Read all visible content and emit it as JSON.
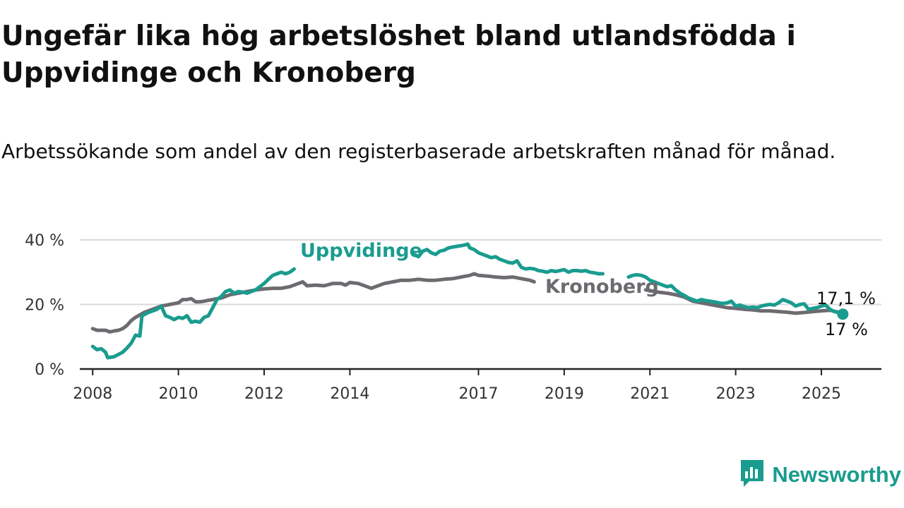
{
  "title": "Ungefär lika hög arbetslöshet bland utlandsfödda i Uppvidinge och Kronoberg",
  "subtitle": "Arbetssökande som andel av den registerbaserade arbetskraften månad för månad.",
  "brand": {
    "name": "Newsworthy",
    "icon": "bar-chart-badge-icon"
  },
  "colors": {
    "uppvidinge": "#1a9c8f",
    "kronoberg": "#6d6b70",
    "grid": "#d9d9d9",
    "axis": "#222222"
  },
  "chart_data": {
    "type": "line",
    "title": "Ungefär lika hög arbetslöshet bland utlandsfödda i Uppvidinge och Kronoberg",
    "subtitle": "Arbetssökande som andel av den registerbaserade arbetskraften månad för månad.",
    "xlabel": "",
    "ylabel": "",
    "ylim": [
      0,
      40
    ],
    "xlim": [
      2007.7,
      2026.4
    ],
    "y_ticks": [
      0,
      20,
      40
    ],
    "y_tick_labels": [
      "0 %",
      "20 %",
      "40 %"
    ],
    "x_ticks": [
      2008,
      2010,
      2012,
      2014,
      2017,
      2019,
      2021,
      2023,
      2025
    ],
    "x_tick_labels": [
      "2008",
      "2010",
      "2012",
      "2014",
      "2017",
      "2019",
      "2021",
      "2023",
      "2025"
    ],
    "grid": "horizontal",
    "series": [
      {
        "name": "Uppvidinge",
        "color": "#1a9c8f",
        "end_label": "17 %",
        "points": [
          [
            2008.0,
            7.0
          ],
          [
            2008.1,
            6.0
          ],
          [
            2008.2,
            6.3
          ],
          [
            2008.3,
            5.2
          ],
          [
            2008.35,
            3.5
          ],
          [
            2008.5,
            3.8
          ],
          [
            2008.6,
            4.5
          ],
          [
            2008.7,
            5.2
          ],
          [
            2008.8,
            6.5
          ],
          [
            2008.9,
            8.0
          ],
          [
            2009.0,
            10.5
          ],
          [
            2009.1,
            10.2
          ],
          [
            2009.15,
            16.5
          ],
          [
            2009.3,
            17.5
          ],
          [
            2009.4,
            18.0
          ],
          [
            2009.5,
            18.5
          ],
          [
            2009.6,
            19.5
          ],
          [
            2009.7,
            16.5
          ],
          [
            2009.8,
            16.0
          ],
          [
            2009.9,
            15.3
          ],
          [
            2010.0,
            16.0
          ],
          [
            2010.1,
            15.7
          ],
          [
            2010.2,
            16.5
          ],
          [
            2010.3,
            14.5
          ],
          [
            2010.4,
            14.8
          ],
          [
            2010.5,
            14.5
          ],
          [
            2010.6,
            16.0
          ],
          [
            2010.7,
            16.5
          ],
          [
            2010.8,
            19.0
          ],
          [
            2010.9,
            21.5
          ],
          [
            2011.0,
            22.5
          ],
          [
            2011.1,
            24.0
          ],
          [
            2011.2,
            24.5
          ],
          [
            2011.3,
            23.5
          ],
          [
            2011.4,
            24.0
          ],
          [
            2011.5,
            23.8
          ],
          [
            2011.6,
            23.5
          ],
          [
            2011.7,
            24.0
          ],
          [
            2011.8,
            24.5
          ],
          [
            2011.9,
            25.5
          ],
          [
            2012.0,
            26.5
          ],
          [
            2012.1,
            27.8
          ],
          [
            2012.2,
            29.0
          ],
          [
            2012.3,
            29.5
          ],
          [
            2012.4,
            30.0
          ],
          [
            2012.5,
            29.5
          ],
          [
            2012.6,
            30.0
          ],
          [
            2012.7,
            31.0
          ]
        ],
        "points_after_label": [
          [
            2015.5,
            35.5
          ],
          [
            2015.6,
            34.8
          ],
          [
            2015.7,
            36.5
          ],
          [
            2015.8,
            37.0
          ],
          [
            2015.9,
            36.0
          ],
          [
            2016.0,
            35.5
          ],
          [
            2016.1,
            36.5
          ],
          [
            2016.2,
            36.8
          ],
          [
            2016.3,
            37.5
          ],
          [
            2016.4,
            37.8
          ],
          [
            2016.5,
            38.0
          ],
          [
            2016.6,
            38.2
          ],
          [
            2016.7,
            38.5
          ],
          [
            2016.75,
            38.7
          ],
          [
            2016.8,
            37.5
          ],
          [
            2016.9,
            37.0
          ],
          [
            2017.0,
            36.0
          ],
          [
            2017.1,
            35.5
          ],
          [
            2017.2,
            35.0
          ],
          [
            2017.3,
            34.5
          ],
          [
            2017.4,
            34.8
          ],
          [
            2017.5,
            34.0
          ],
          [
            2017.6,
            33.5
          ],
          [
            2017.7,
            33.0
          ],
          [
            2017.8,
            32.8
          ],
          [
            2017.9,
            33.5
          ],
          [
            2018.0,
            31.5
          ],
          [
            2018.1,
            31.0
          ],
          [
            2018.2,
            31.2
          ],
          [
            2018.3,
            31.0
          ],
          [
            2018.4,
            30.5
          ],
          [
            2018.5,
            30.3
          ],
          [
            2018.6,
            30.0
          ],
          [
            2018.7,
            30.5
          ],
          [
            2018.8,
            30.2
          ],
          [
            2018.9,
            30.5
          ],
          [
            2019.0,
            30.8
          ],
          [
            2019.1,
            30.0
          ],
          [
            2019.2,
            30.5
          ],
          [
            2019.3,
            30.5
          ],
          [
            2019.4,
            30.3
          ],
          [
            2019.5,
            30.5
          ],
          [
            2019.6,
            30.0
          ],
          [
            2019.7,
            29.8
          ],
          [
            2019.8,
            29.5
          ],
          [
            2019.9,
            29.5
          ]
        ],
        "points_tail": [
          [
            2020.5,
            28.5
          ],
          [
            2020.6,
            29.0
          ],
          [
            2020.7,
            29.2
          ],
          [
            2020.8,
            29.0
          ],
          [
            2020.9,
            28.5
          ],
          [
            2021.0,
            27.5
          ],
          [
            2021.1,
            27.0
          ],
          [
            2021.2,
            26.5
          ],
          [
            2021.3,
            26.0
          ],
          [
            2021.4,
            25.5
          ],
          [
            2021.5,
            25.8
          ],
          [
            2021.6,
            24.5
          ],
          [
            2021.7,
            23.5
          ],
          [
            2021.8,
            22.8
          ],
          [
            2021.9,
            22.0
          ],
          [
            2022.0,
            21.5
          ],
          [
            2022.1,
            21.0
          ],
          [
            2022.2,
            21.5
          ],
          [
            2022.3,
            21.2
          ],
          [
            2022.4,
            21.0
          ],
          [
            2022.5,
            20.8
          ],
          [
            2022.6,
            20.5
          ],
          [
            2022.7,
            20.3
          ],
          [
            2022.8,
            20.5
          ],
          [
            2022.9,
            21.0
          ],
          [
            2023.0,
            19.5
          ],
          [
            2023.1,
            19.8
          ],
          [
            2023.2,
            19.3
          ],
          [
            2023.3,
            19.0
          ],
          [
            2023.4,
            19.2
          ],
          [
            2023.5,
            19.0
          ],
          [
            2023.6,
            19.5
          ],
          [
            2023.7,
            19.8
          ],
          [
            2023.8,
            20.0
          ],
          [
            2023.9,
            19.8
          ],
          [
            2024.0,
            20.5
          ],
          [
            2024.1,
            21.5
          ],
          [
            2024.2,
            21.0
          ],
          [
            2024.3,
            20.5
          ],
          [
            2024.4,
            19.5
          ],
          [
            2024.5,
            20.0
          ],
          [
            2024.6,
            20.2
          ],
          [
            2024.7,
            18.5
          ],
          [
            2024.8,
            18.8
          ],
          [
            2024.9,
            19.0
          ],
          [
            2025.0,
            19.5
          ],
          [
            2025.1,
            19.8
          ],
          [
            2025.2,
            18.5
          ],
          [
            2025.3,
            17.8
          ],
          [
            2025.4,
            17.5
          ],
          [
            2025.5,
            17.0
          ]
        ]
      },
      {
        "name": "Kronoberg",
        "color": "#6d6b70",
        "end_label": "17,1 %",
        "points": [
          [
            2008.0,
            12.5
          ],
          [
            2008.1,
            12.0
          ],
          [
            2008.3,
            12.0
          ],
          [
            2008.4,
            11.5
          ],
          [
            2008.5,
            11.8
          ],
          [
            2008.6,
            12.0
          ],
          [
            2008.7,
            12.5
          ],
          [
            2008.8,
            13.5
          ],
          [
            2008.9,
            15.0
          ],
          [
            2009.0,
            16.0
          ],
          [
            2009.2,
            17.5
          ],
          [
            2009.4,
            18.5
          ],
          [
            2009.6,
            19.5
          ],
          [
            2009.8,
            20.0
          ],
          [
            2010.0,
            20.5
          ],
          [
            2010.1,
            21.5
          ],
          [
            2010.2,
            21.5
          ],
          [
            2010.3,
            21.8
          ],
          [
            2010.4,
            20.8
          ],
          [
            2010.5,
            20.8
          ],
          [
            2010.6,
            21.0
          ],
          [
            2010.7,
            21.3
          ],
          [
            2010.8,
            21.5
          ],
          [
            2010.9,
            21.8
          ],
          [
            2011.0,
            22.0
          ],
          [
            2011.2,
            23.0
          ],
          [
            2011.4,
            23.5
          ],
          [
            2011.6,
            24.0
          ],
          [
            2011.8,
            24.5
          ],
          [
            2012.0,
            24.8
          ],
          [
            2012.2,
            25.0
          ],
          [
            2012.4,
            25.0
          ],
          [
            2012.6,
            25.5
          ],
          [
            2012.8,
            26.5
          ],
          [
            2012.9,
            27.0
          ],
          [
            2013.0,
            25.8
          ],
          [
            2013.2,
            26.0
          ],
          [
            2013.4,
            25.8
          ],
          [
            2013.6,
            26.5
          ],
          [
            2013.8,
            26.5
          ],
          [
            2013.9,
            26.0
          ],
          [
            2014.0,
            26.8
          ],
          [
            2014.2,
            26.5
          ],
          [
            2014.4,
            25.5
          ],
          [
            2014.5,
            25.0
          ],
          [
            2014.6,
            25.5
          ],
          [
            2014.8,
            26.5
          ],
          [
            2015.0,
            27.0
          ],
          [
            2015.2,
            27.5
          ],
          [
            2015.4,
            27.5
          ],
          [
            2015.6,
            27.8
          ],
          [
            2015.8,
            27.5
          ],
          [
            2016.0,
            27.5
          ],
          [
            2016.2,
            27.8
          ],
          [
            2016.4,
            28.0
          ],
          [
            2016.6,
            28.5
          ],
          [
            2016.8,
            29.0
          ],
          [
            2016.9,
            29.5
          ],
          [
            2017.0,
            29.0
          ],
          [
            2017.2,
            28.8
          ],
          [
            2017.4,
            28.5
          ],
          [
            2017.6,
            28.3
          ],
          [
            2017.8,
            28.5
          ],
          [
            2018.0,
            28.0
          ],
          [
            2018.2,
            27.5
          ],
          [
            2018.3,
            27.0
          ]
        ],
        "points_tail": [
          [
            2020.9,
            24.5
          ],
          [
            2021.0,
            24.3
          ],
          [
            2021.2,
            23.8
          ],
          [
            2021.4,
            23.5
          ],
          [
            2021.6,
            23.0
          ],
          [
            2021.8,
            22.3
          ],
          [
            2022.0,
            21.0
          ],
          [
            2022.2,
            20.5
          ],
          [
            2022.4,
            20.0
          ],
          [
            2022.6,
            19.5
          ],
          [
            2022.8,
            19.0
          ],
          [
            2023.0,
            18.8
          ],
          [
            2023.2,
            18.5
          ],
          [
            2023.4,
            18.3
          ],
          [
            2023.6,
            18.0
          ],
          [
            2023.8,
            18.0
          ],
          [
            2024.0,
            17.8
          ],
          [
            2024.2,
            17.6
          ],
          [
            2024.4,
            17.3
          ],
          [
            2024.6,
            17.5
          ],
          [
            2024.8,
            17.8
          ],
          [
            2025.0,
            18.0
          ],
          [
            2025.2,
            18.2
          ],
          [
            2025.4,
            17.6
          ],
          [
            2025.5,
            17.1
          ]
        ]
      }
    ]
  }
}
